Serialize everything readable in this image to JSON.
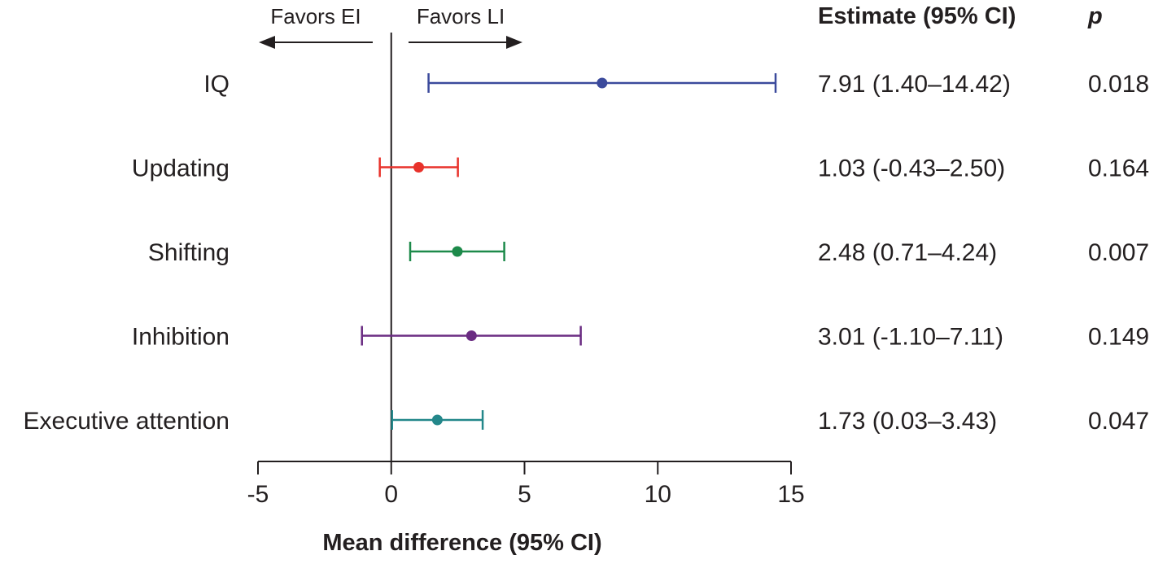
{
  "chart_data": {
    "type": "forest",
    "xlabel": "Mean difference (95% CI)",
    "xlim": [
      -5,
      15
    ],
    "xticks": [
      -5,
      0,
      5,
      10,
      15
    ],
    "xtick_labels": [
      "-5",
      "0",
      "5",
      "10",
      "15"
    ],
    "reference_line": 0,
    "favors_left": "Favors EI",
    "favors_right": "Favors LI",
    "estimate_header": "Estimate (95% CI)",
    "p_header": "p",
    "rows": [
      {
        "label": "IQ",
        "estimate": 7.91,
        "lower": 1.4,
        "upper": 14.42,
        "estimate_text": "7.91 (1.40–14.42)",
        "p": "0.018",
        "color": "#3b4a9c"
      },
      {
        "label": "Updating",
        "estimate": 1.03,
        "lower": -0.43,
        "upper": 2.5,
        "estimate_text": "1.03 (-0.43–2.50)",
        "p": "0.164",
        "color": "#e8322b"
      },
      {
        "label": "Shifting",
        "estimate": 2.48,
        "lower": 0.71,
        "upper": 4.24,
        "estimate_text": "2.48 (0.71–4.24)",
        "p": "0.007",
        "color": "#1d8a4a"
      },
      {
        "label": "Inhibition",
        "estimate": 3.01,
        "lower": -1.1,
        "upper": 7.11,
        "estimate_text": "3.01 (-1.10–7.11)",
        "p": "0.149",
        "color": "#6a2c82"
      },
      {
        "label": "Executive attention",
        "estimate": 1.73,
        "lower": 0.03,
        "upper": 3.43,
        "estimate_text": "1.73 (0.03–3.43)",
        "p": "0.047",
        "color": "#23878a"
      }
    ]
  }
}
